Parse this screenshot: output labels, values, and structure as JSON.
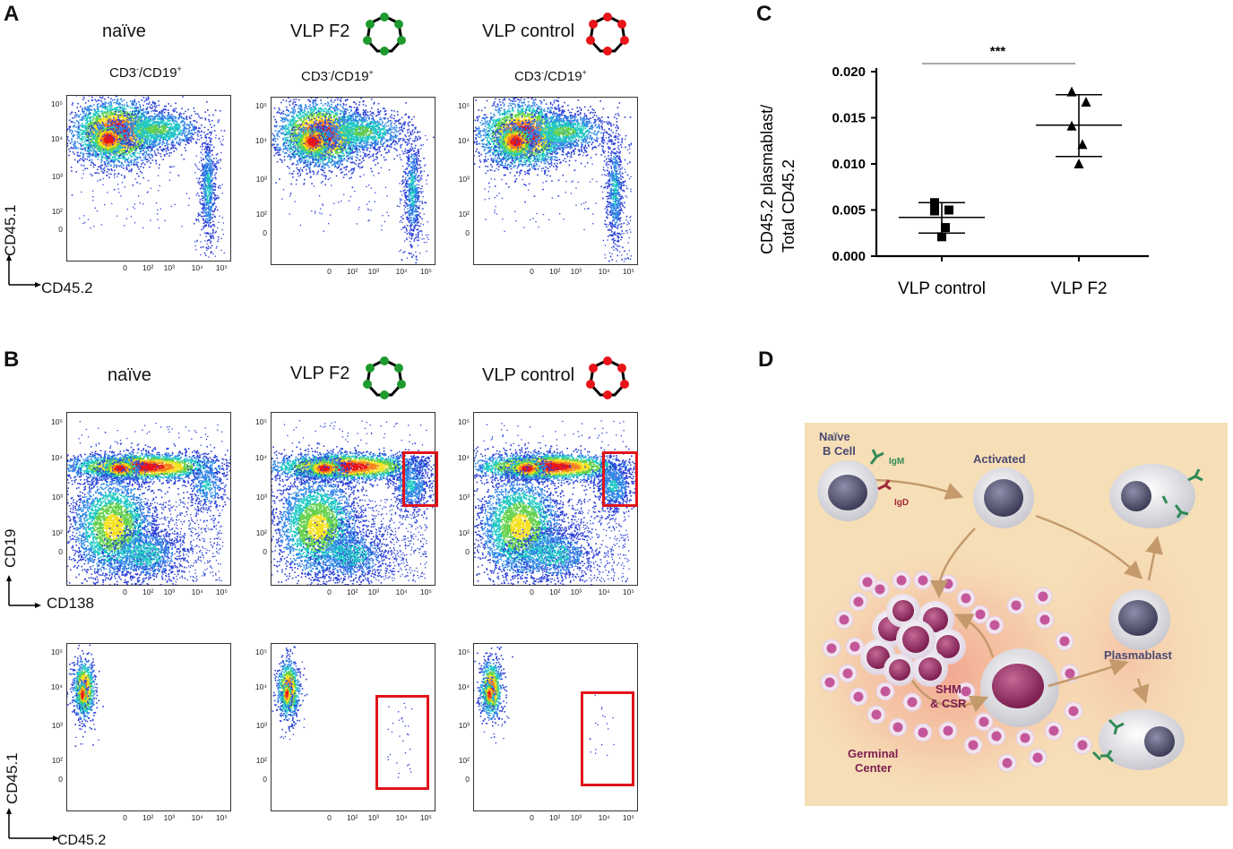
{
  "panels": {
    "A": {
      "letter": "A",
      "columns": [
        {
          "title": "naïve",
          "subtitle_main": "CD3",
          "subtitle_sup1": "-",
          "subtitle_mid": "/CD19",
          "subtitle_sup2": "+"
        },
        {
          "title": "VLP F2",
          "subtitle_main": "CD3",
          "subtitle_sup1": "-",
          "subtitle_mid": "/CD19",
          "subtitle_sup2": "+"
        },
        {
          "title": "VLP control",
          "subtitle_main": "CD3",
          "subtitle_sup1": "-",
          "subtitle_mid": "/CD19",
          "subtitle_sup2": "+"
        }
      ],
      "y_axis": "CD45.1",
      "x_axis": "CD45.2"
    },
    "B": {
      "letter": "B",
      "columns": [
        {
          "title": "naïve"
        },
        {
          "title": "VLP F2"
        },
        {
          "title": "VLP control"
        }
      ],
      "top_y_axis": "CD19",
      "top_x_axis": "CD138",
      "bottom_y_axis": "CD45.1",
      "bottom_x_axis": "CD45.2"
    },
    "C": {
      "letter": "C"
    },
    "D": {
      "letter": "D",
      "labels": {
        "naive_b_cell_1": "Naïve",
        "naive_b_cell_2": "B Cell",
        "igm": "IgM",
        "igd": "IgD",
        "activated": "Activated",
        "plasmablast": "Plasmablast",
        "shm_1": "SHM",
        "shm_2": "& CSR",
        "gc_1": "Germinal",
        "gc_2": "Center"
      }
    }
  },
  "flow_ticks": {
    "y": [
      "10⁵",
      "10⁴",
      "10³",
      "10²",
      "0"
    ],
    "x": [
      "0",
      "10²",
      "10³",
      "10⁴",
      "10⁵"
    ]
  },
  "chart_data": {
    "type": "scatter",
    "title": "",
    "ylabel_line1": "CD45.2 plasmablast/",
    "ylabel_line2": "Total CD45.2",
    "xlabel": "",
    "categories": [
      "VLP control",
      "VLP F2"
    ],
    "ylim": [
      0,
      0.02
    ],
    "y_ticks": [
      "0.000",
      "0.005",
      "0.010",
      "0.015",
      "0.020"
    ],
    "significance": "***",
    "series": [
      {
        "name": "VLP control",
        "marker": "square",
        "values": [
          0.0058,
          0.005,
          0.0049,
          0.0031,
          0.0021
        ],
        "mean": 0.0042,
        "sd_upper": 0.0058,
        "sd_lower": 0.0025
      },
      {
        "name": "VLP F2",
        "marker": "triangle",
        "values": [
          0.0178,
          0.0167,
          0.0141,
          0.0121,
          0.01
        ],
        "mean": 0.0142,
        "sd_upper": 0.0175,
        "sd_lower": 0.0108
      }
    ]
  }
}
